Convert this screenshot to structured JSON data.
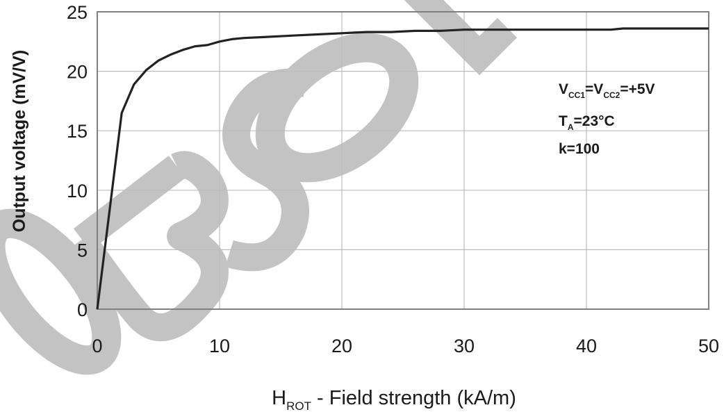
{
  "chart_data": {
    "type": "line",
    "x_axis": {
      "label_main": "H",
      "label_sub": "ROT",
      "label_rest": " - Field strength (kA/m)",
      "ticks": [
        "0",
        "10",
        "20",
        "30",
        "40",
        "50"
      ],
      "range": [
        0,
        50
      ]
    },
    "y_axis": {
      "label": "Output voltage (mV/V)",
      "ticks": [
        "0",
        "5",
        "10",
        "15",
        "20",
        "25"
      ],
      "range": [
        0,
        25
      ]
    },
    "grid": true,
    "series": [
      {
        "x": [
          0,
          2,
          3,
          4,
          5,
          6,
          7,
          8,
          9,
          10,
          11,
          12,
          14,
          16,
          18,
          20,
          22,
          24,
          26,
          28,
          30,
          32,
          35,
          40,
          42,
          43,
          45,
          50
        ],
        "y": [
          0,
          16.5,
          18.9,
          20.1,
          20.9,
          21.4,
          21.8,
          22.1,
          22.2,
          22.5,
          22.7,
          22.8,
          22.9,
          23.0,
          23.1,
          23.2,
          23.3,
          23.3,
          23.4,
          23.4,
          23.5,
          23.5,
          23.5,
          23.5,
          23.5,
          23.6,
          23.6,
          23.6
        ],
        "color": "#222222"
      }
    ],
    "annotations": {
      "line1": [
        {
          "text": "V",
          "sub": false
        },
        {
          "text": "CC1",
          "sub": true
        },
        {
          "text": "=V",
          "sub": false
        },
        {
          "text": "CC2",
          "sub": true
        },
        {
          "text": "=+5V",
          "sub": false
        }
      ],
      "line2": [
        {
          "text": "T",
          "sub": false
        },
        {
          "text": "A",
          "sub": true
        },
        {
          "text": "=23°C",
          "sub": false
        }
      ],
      "line3": [
        {
          "text": "k=100",
          "sub": false
        }
      ]
    },
    "watermark": "OBSOLETE"
  },
  "colors": {
    "watermark": "#c3c3c3",
    "grid": "#bcbcbc",
    "frame": "#808080",
    "line": "#222222"
  }
}
